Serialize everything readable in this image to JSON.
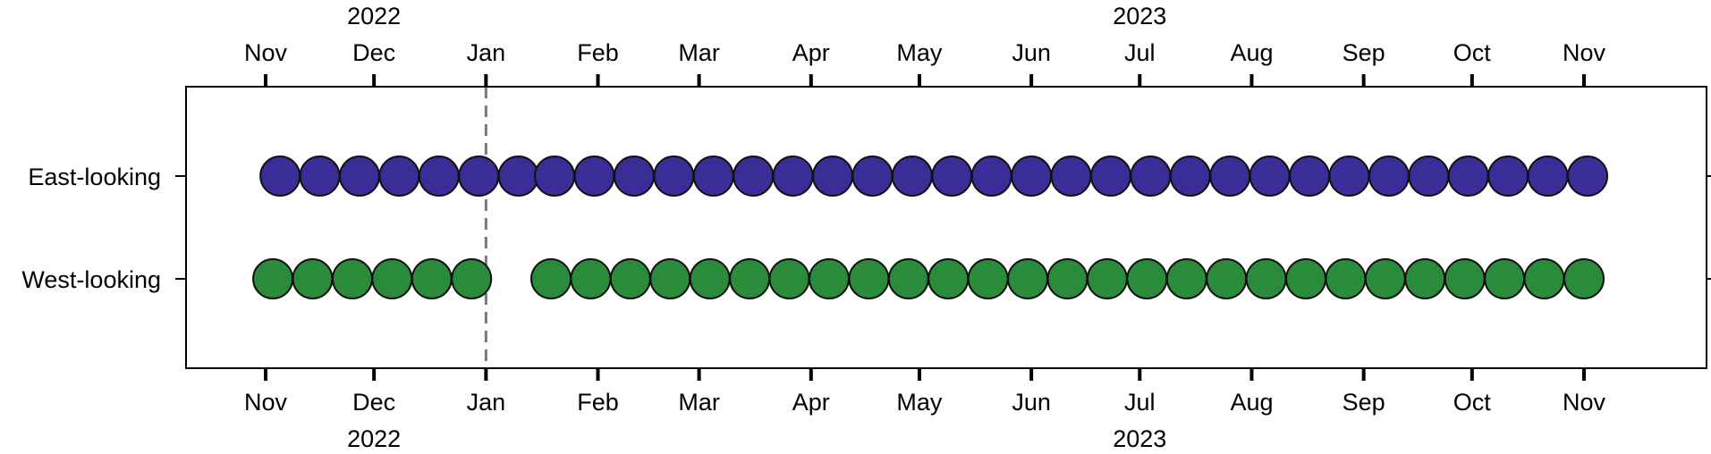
{
  "chart_data": {
    "type": "scatter",
    "title": "",
    "xlabel": "",
    "ylabel": "",
    "x_axis": {
      "type": "date",
      "range": [
        "2022-10-18",
        "2023-11-21"
      ],
      "ticks": [
        {
          "date": "2022-11-01",
          "label": "Nov"
        },
        {
          "date": "2022-12-01",
          "label": "Dec"
        },
        {
          "date": "2023-01-01",
          "label": "Jan"
        },
        {
          "date": "2023-02-01",
          "label": "Feb"
        },
        {
          "date": "2023-03-01",
          "label": "Mar"
        },
        {
          "date": "2023-04-01",
          "label": "Apr"
        },
        {
          "date": "2023-05-01",
          "label": "May"
        },
        {
          "date": "2023-06-01",
          "label": "Jun"
        },
        {
          "date": "2023-07-01",
          "label": "Jul"
        },
        {
          "date": "2023-08-01",
          "label": "Aug"
        },
        {
          "date": "2023-09-01",
          "label": "Sep"
        },
        {
          "date": "2023-10-01",
          "label": "Oct"
        },
        {
          "date": "2023-11-01",
          "label": "Nov"
        }
      ],
      "year_labels": [
        {
          "label": "2022",
          "date": "2022-12-01"
        },
        {
          "label": "2023",
          "date": "2023-07-01"
        }
      ],
      "tick_labels_top_and_bottom": true
    },
    "y_axis": {
      "type": "category",
      "categories": [
        "East-looking",
        "West-looking"
      ]
    },
    "reference_line": {
      "date": "2023-01-01",
      "style": "dashed",
      "color": "#777777"
    },
    "grid": false,
    "legend": "none",
    "series": [
      {
        "name": "East-looking",
        "color": "#3b2d98",
        "dates": [
          "2022-11-05",
          "2022-11-16",
          "2022-11-27",
          "2022-12-08",
          "2022-12-19",
          "2022-12-30",
          "2023-01-10",
          "2023-01-20",
          "2023-01-31",
          "2023-02-11",
          "2023-02-22",
          "2023-03-05",
          "2023-03-16",
          "2023-03-27",
          "2023-04-07",
          "2023-04-18",
          "2023-04-29",
          "2023-05-10",
          "2023-05-21",
          "2023-06-01",
          "2023-06-12",
          "2023-06-23",
          "2023-07-04",
          "2023-07-15",
          "2023-07-26",
          "2023-08-06",
          "2023-08-17",
          "2023-08-28",
          "2023-09-08",
          "2023-09-19",
          "2023-09-30",
          "2023-10-11",
          "2023-10-22",
          "2023-11-02"
        ]
      },
      {
        "name": "West-looking",
        "color": "#2a8c3a",
        "dates": [
          "2022-11-03",
          "2022-11-14",
          "2022-11-25",
          "2022-12-06",
          "2022-12-17",
          "2022-12-28",
          "2023-01-19",
          "2023-01-30",
          "2023-02-10",
          "2023-02-21",
          "2023-03-04",
          "2023-03-15",
          "2023-03-26",
          "2023-04-06",
          "2023-04-17",
          "2023-04-28",
          "2023-05-09",
          "2023-05-20",
          "2023-05-31",
          "2023-06-11",
          "2023-06-22",
          "2023-07-03",
          "2023-07-14",
          "2023-07-25",
          "2023-08-05",
          "2023-08-16",
          "2023-08-27",
          "2023-09-07",
          "2023-09-18",
          "2023-09-29",
          "2023-10-10",
          "2023-10-21",
          "2023-11-01"
        ]
      }
    ]
  }
}
